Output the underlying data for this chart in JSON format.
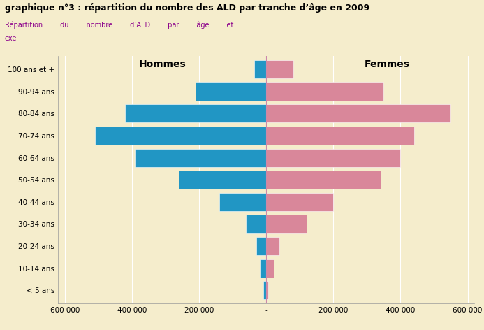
{
  "title": "graphique n°3 : répartition du nombre des ALD par tranche d’âge en 2009",
  "subtitle_line1": "Répartition        du        nombre        d’ALD        par        âge        et",
  "subtitle_line2": "exe",
  "age_groups": [
    "< 5 ans",
    "10-14 ans",
    "20-24 ans",
    "30-34 ans",
    "40-44 ans",
    "50-54 ans",
    "60-64 ans",
    "70-74 ans",
    "80-84 ans",
    "90-94 ans",
    "100 ans et +"
  ],
  "hommes": [
    8000,
    18000,
    30000,
    60000,
    140000,
    260000,
    390000,
    510000,
    420000,
    210000,
    35000
  ],
  "femmes": [
    6000,
    22000,
    40000,
    120000,
    200000,
    340000,
    400000,
    440000,
    550000,
    350000,
    80000
  ],
  "hommes_color": "#2196C4",
  "femmes_color": "#D9879A",
  "background_color": "#F5EDCC",
  "plot_background_color": "#F5EDCC",
  "xlim": [
    -620000,
    620000
  ],
  "xticks": [
    -600000,
    -400000,
    -200000,
    0,
    200000,
    400000,
    600000
  ],
  "xtick_labels": [
    "600 000",
    "400 000",
    "200 000",
    "-",
    "200 000",
    "400 000",
    "600 000"
  ],
  "title_color": "#000000",
  "subtitle_color": "#8B008B",
  "bar_height": 0.82,
  "label_hommes": "Hommes",
  "label_femmes": "Femmes",
  "center_line_color": "#CC88AA",
  "grid_color": "#FFFFFF"
}
